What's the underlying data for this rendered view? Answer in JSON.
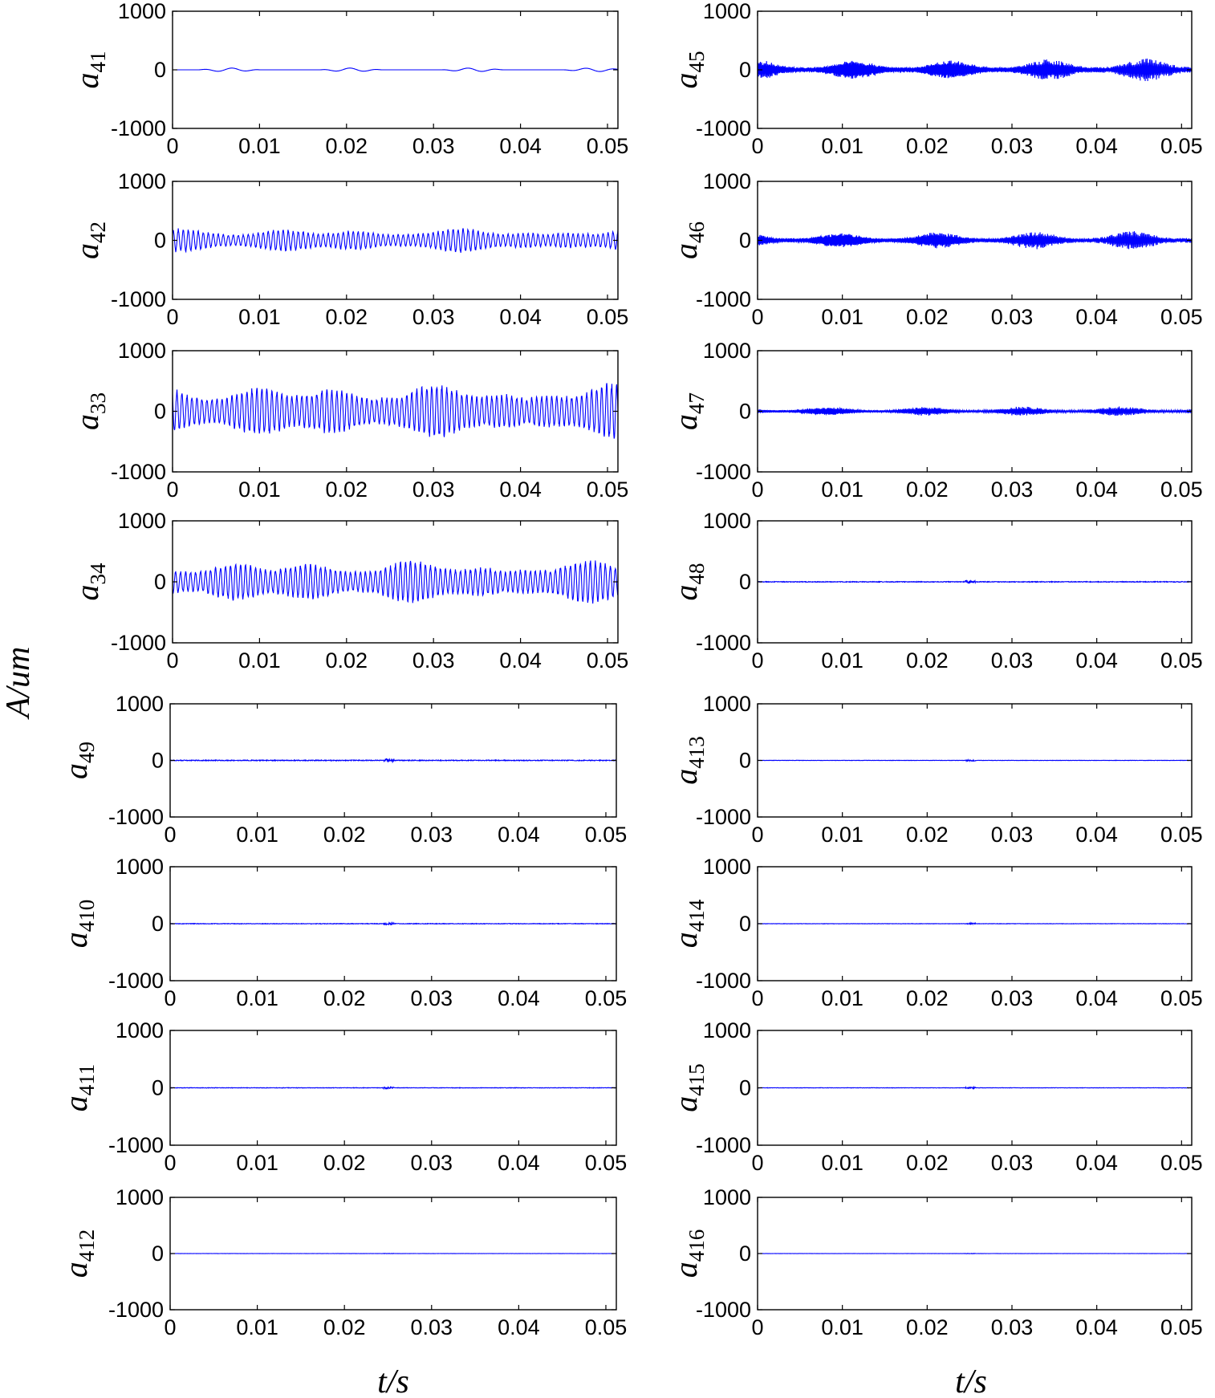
{
  "chart_data": {
    "type": "line",
    "layout": "8 rows x 2 columns of subplots",
    "ylabel": "A/um",
    "xlabel": "t/s",
    "xlim": [
      0,
      0.0512
    ],
    "ylim": [
      -1000,
      1000
    ],
    "xticks": [
      "0",
      "0.01",
      "0.02",
      "0.03",
      "0.04",
      "0.05"
    ],
    "yticks": [
      "1000",
      "0",
      "-1000"
    ],
    "line_color": "#0000ff",
    "subplots": [
      {
        "label": "a",
        "sub": "41",
        "column": "left",
        "row": 1,
        "kind": "smooth",
        "amplitude": 60
      },
      {
        "label": "a",
        "sub": "42",
        "column": "left",
        "row": 2,
        "kind": "oscillating",
        "amplitude": 220
      },
      {
        "label": "a",
        "sub": "33",
        "column": "left",
        "row": 3,
        "kind": "oscillating",
        "amplitude": 480
      },
      {
        "label": "a",
        "sub": "34",
        "column": "left",
        "row": 4,
        "kind": "oscillating",
        "amplitude": 380
      },
      {
        "label": "a",
        "sub": "49",
        "column": "left",
        "row": 5,
        "kind": "flat",
        "amplitude": 15
      },
      {
        "label": "a",
        "sub": "410",
        "column": "left",
        "row": 6,
        "kind": "flat",
        "amplitude": 10
      },
      {
        "label": "a",
        "sub": "411",
        "column": "left",
        "row": 7,
        "kind": "flat",
        "amplitude": 8
      },
      {
        "label": "a",
        "sub": "412",
        "column": "left",
        "row": 8,
        "kind": "flat",
        "amplitude": 2
      },
      {
        "label": "a",
        "sub": "45",
        "column": "right",
        "row": 1,
        "kind": "noisy",
        "amplitude": 200
      },
      {
        "label": "a",
        "sub": "46",
        "column": "right",
        "row": 2,
        "kind": "noisy",
        "amplitude": 160
      },
      {
        "label": "a",
        "sub": "47",
        "column": "right",
        "row": 3,
        "kind": "noisy",
        "amplitude": 80
      },
      {
        "label": "a",
        "sub": "48",
        "column": "right",
        "row": 4,
        "kind": "flat",
        "amplitude": 12
      },
      {
        "label": "a",
        "sub": "413",
        "column": "right",
        "row": 5,
        "kind": "flat",
        "amplitude": 6
      },
      {
        "label": "a",
        "sub": "414",
        "column": "right",
        "row": 6,
        "kind": "flat",
        "amplitude": 6
      },
      {
        "label": "a",
        "sub": "415",
        "column": "right",
        "row": 7,
        "kind": "flat",
        "amplitude": 6
      },
      {
        "label": "a",
        "sub": "416",
        "column": "right",
        "row": 8,
        "kind": "flat",
        "amplitude": 2
      }
    ]
  }
}
